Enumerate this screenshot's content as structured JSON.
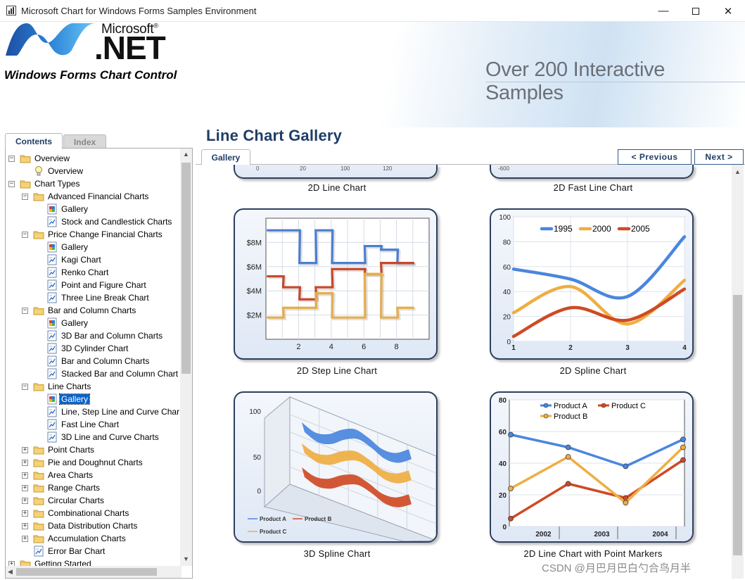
{
  "window": {
    "title": "Microsoft Chart for Windows Forms Samples Environment"
  },
  "header": {
    "ms_brand": "Microsoft",
    "ms_reg": "®",
    "net_brand": ".NET",
    "product": "Windows Forms Chart Control",
    "tagline": "Over 200 Interactive Samples"
  },
  "left_tabs": {
    "contents": "Contents",
    "index": "Index"
  },
  "tree": [
    {
      "label": "Overview",
      "level": 0,
      "exp": "−",
      "icon": "folder-icon"
    },
    {
      "label": "Overview",
      "level": 1,
      "exp": "",
      "icon": "lightbulb-icon"
    },
    {
      "label": "Chart Types",
      "level": 0,
      "exp": "−",
      "icon": "folder-icon"
    },
    {
      "label": "Advanced Financial Charts",
      "level": 1,
      "exp": "−",
      "icon": "folder-icon"
    },
    {
      "label": "Gallery",
      "level": 2,
      "exp": "",
      "icon": "gallery-icon"
    },
    {
      "label": "Stock and Candlestick Charts",
      "level": 2,
      "exp": "",
      "icon": "chart-page-icon"
    },
    {
      "label": "Price Change Financial Charts",
      "level": 1,
      "exp": "−",
      "icon": "folder-icon"
    },
    {
      "label": "Gallery",
      "level": 2,
      "exp": "",
      "icon": "gallery-icon"
    },
    {
      "label": "Kagi Chart",
      "level": 2,
      "exp": "",
      "icon": "chart-page-icon"
    },
    {
      "label": "Renko Chart",
      "level": 2,
      "exp": "",
      "icon": "chart-page-icon"
    },
    {
      "label": "Point and Figure Chart",
      "level": 2,
      "exp": "",
      "icon": "chart-page-icon"
    },
    {
      "label": "Three Line Break Chart",
      "level": 2,
      "exp": "",
      "icon": "chart-page-icon"
    },
    {
      "label": "Bar and Column Charts",
      "level": 1,
      "exp": "−",
      "icon": "folder-icon"
    },
    {
      "label": "Gallery",
      "level": 2,
      "exp": "",
      "icon": "gallery-icon"
    },
    {
      "label": "3D Bar and Column Charts",
      "level": 2,
      "exp": "",
      "icon": "chart-page-icon"
    },
    {
      "label": "3D Cylinder Chart",
      "level": 2,
      "exp": "",
      "icon": "chart-page-icon"
    },
    {
      "label": "Bar and Column Charts",
      "level": 2,
      "exp": "",
      "icon": "chart-page-icon"
    },
    {
      "label": "Stacked Bar and Column Chart",
      "level": 2,
      "exp": "",
      "icon": "chart-page-icon"
    },
    {
      "label": "Line Charts",
      "level": 1,
      "exp": "−",
      "icon": "folder-icon"
    },
    {
      "label": "Gallery",
      "level": 2,
      "exp": "",
      "icon": "gallery-icon",
      "selected": true
    },
    {
      "label": "Line, Step Line and Curve Char",
      "level": 2,
      "exp": "",
      "icon": "chart-page-icon"
    },
    {
      "label": "Fast Line Chart",
      "level": 2,
      "exp": "",
      "icon": "chart-page-icon"
    },
    {
      "label": "3D Line and Curve Charts",
      "level": 2,
      "exp": "",
      "icon": "chart-page-icon"
    },
    {
      "label": "Point Charts",
      "level": 1,
      "exp": "+",
      "icon": "folder-icon"
    },
    {
      "label": "Pie and Doughnut Charts",
      "level": 1,
      "exp": "+",
      "icon": "folder-icon"
    },
    {
      "label": "Area Charts",
      "level": 1,
      "exp": "+",
      "icon": "folder-icon"
    },
    {
      "label": "Range Charts",
      "level": 1,
      "exp": "+",
      "icon": "folder-icon"
    },
    {
      "label": "Circular Charts",
      "level": 1,
      "exp": "+",
      "icon": "folder-icon"
    },
    {
      "label": "Combinational Charts",
      "level": 1,
      "exp": "+",
      "icon": "folder-icon"
    },
    {
      "label": "Data Distribution Charts",
      "level": 1,
      "exp": "+",
      "icon": "folder-icon"
    },
    {
      "label": "Accumulation Charts",
      "level": 1,
      "exp": "+",
      "icon": "folder-icon"
    },
    {
      "label": "Error Bar Chart",
      "level": 1,
      "exp": "",
      "icon": "chart-page-icon"
    },
    {
      "label": "Getting Started",
      "level": 0,
      "exp": "+",
      "icon": "folder-icon"
    }
  ],
  "main": {
    "page_title": "Line Chart Gallery",
    "tab": "Gallery",
    "prev_label": "<  Previous",
    "next_label": "Next  >"
  },
  "gallery": {
    "top_labels": [
      "2D Line Chart",
      "2D Fast Line Chart"
    ],
    "top_partial_ticks": {
      "left": [
        "0",
        "20",
        "100",
        "120"
      ],
      "right": "-600"
    },
    "cards": [
      {
        "label": "2D Step Line Chart"
      },
      {
        "label": "2D Spline Chart"
      },
      {
        "label": "3D Spline Chart"
      },
      {
        "label": "2D Line Chart with Point Markers"
      }
    ]
  },
  "chart_data": [
    {
      "type": "line",
      "title": "2D Step Line Chart",
      "xlabel": "",
      "ylabel": "",
      "x_ticks": [
        "2",
        "4",
        "6",
        "8"
      ],
      "y_ticks": [
        "$2M",
        "$4M",
        "$6M",
        "$8M"
      ],
      "x": [
        1,
        2,
        3,
        4,
        5,
        6,
        7,
        8,
        9
      ],
      "xlim": [
        0,
        10
      ],
      "ylim": [
        0,
        10
      ],
      "series": [
        {
          "color": "#4a7fd0",
          "values": [
            9,
            9,
            6.3,
            9,
            6.3,
            6.3,
            7.7,
            7.4,
            6.3
          ]
        },
        {
          "color": "#c8472a",
          "values": [
            5.2,
            4.3,
            3.3,
            4.3,
            5.8,
            5.8,
            5.4,
            6.3,
            6.3
          ]
        },
        {
          "color": "#e7ad4a",
          "values": [
            1.8,
            2.6,
            2.6,
            3.8,
            1.8,
            1.8,
            5.4,
            1.8,
            2.6
          ]
        }
      ],
      "grid": true
    },
    {
      "type": "line",
      "title": "2D Spline Chart",
      "xlabel": "",
      "ylabel": "",
      "x": [
        1,
        2,
        3,
        4
      ],
      "xlim": [
        1,
        4
      ],
      "ylim": [
        0,
        100
      ],
      "x_ticks": [
        "1",
        "2",
        "3",
        "4"
      ],
      "y_ticks": [
        "0",
        "20",
        "40",
        "60",
        "80",
        "100"
      ],
      "legend": "top",
      "series": [
        {
          "name": "1995",
          "color": "#4a86de",
          "values": [
            58,
            50,
            36,
            84
          ]
        },
        {
          "name": "2000",
          "color": "#efae42",
          "values": [
            23,
            44,
            14,
            49
          ]
        },
        {
          "name": "2005",
          "color": "#cf4a24",
          "values": [
            4,
            27,
            17,
            42
          ]
        }
      ],
      "grid": true
    },
    {
      "type": "line",
      "title": "3D Spline Chart",
      "xlabel": "",
      "ylabel": "",
      "y_ticks": [
        "0",
        "50",
        "100"
      ],
      "legend": "bottom-left",
      "series": [
        {
          "name": "Product A",
          "color": "#4a86de"
        },
        {
          "name": "Product B",
          "color": "#cf4a24"
        },
        {
          "name": "Product C",
          "color": "#efae42"
        }
      ]
    },
    {
      "type": "line",
      "title": "2D Line Chart with Point Markers",
      "xlabel": "",
      "ylabel": "",
      "x_ticks": [
        "2002",
        "2003",
        "2004"
      ],
      "y_ticks": [
        "0",
        "20",
        "40",
        "60",
        "80"
      ],
      "ylim": [
        0,
        80
      ],
      "legend": "top",
      "series": [
        {
          "name": "Product A",
          "color": "#4a86de",
          "values": [
            58,
            50,
            38,
            55
          ]
        },
        {
          "name": "Product C",
          "color": "#cf4a24",
          "values": [
            5,
            27,
            18,
            42
          ]
        },
        {
          "name": "Product B",
          "color": "#efae42",
          "values": [
            24,
            44,
            15,
            50
          ]
        }
      ],
      "grid": true
    }
  ]
}
